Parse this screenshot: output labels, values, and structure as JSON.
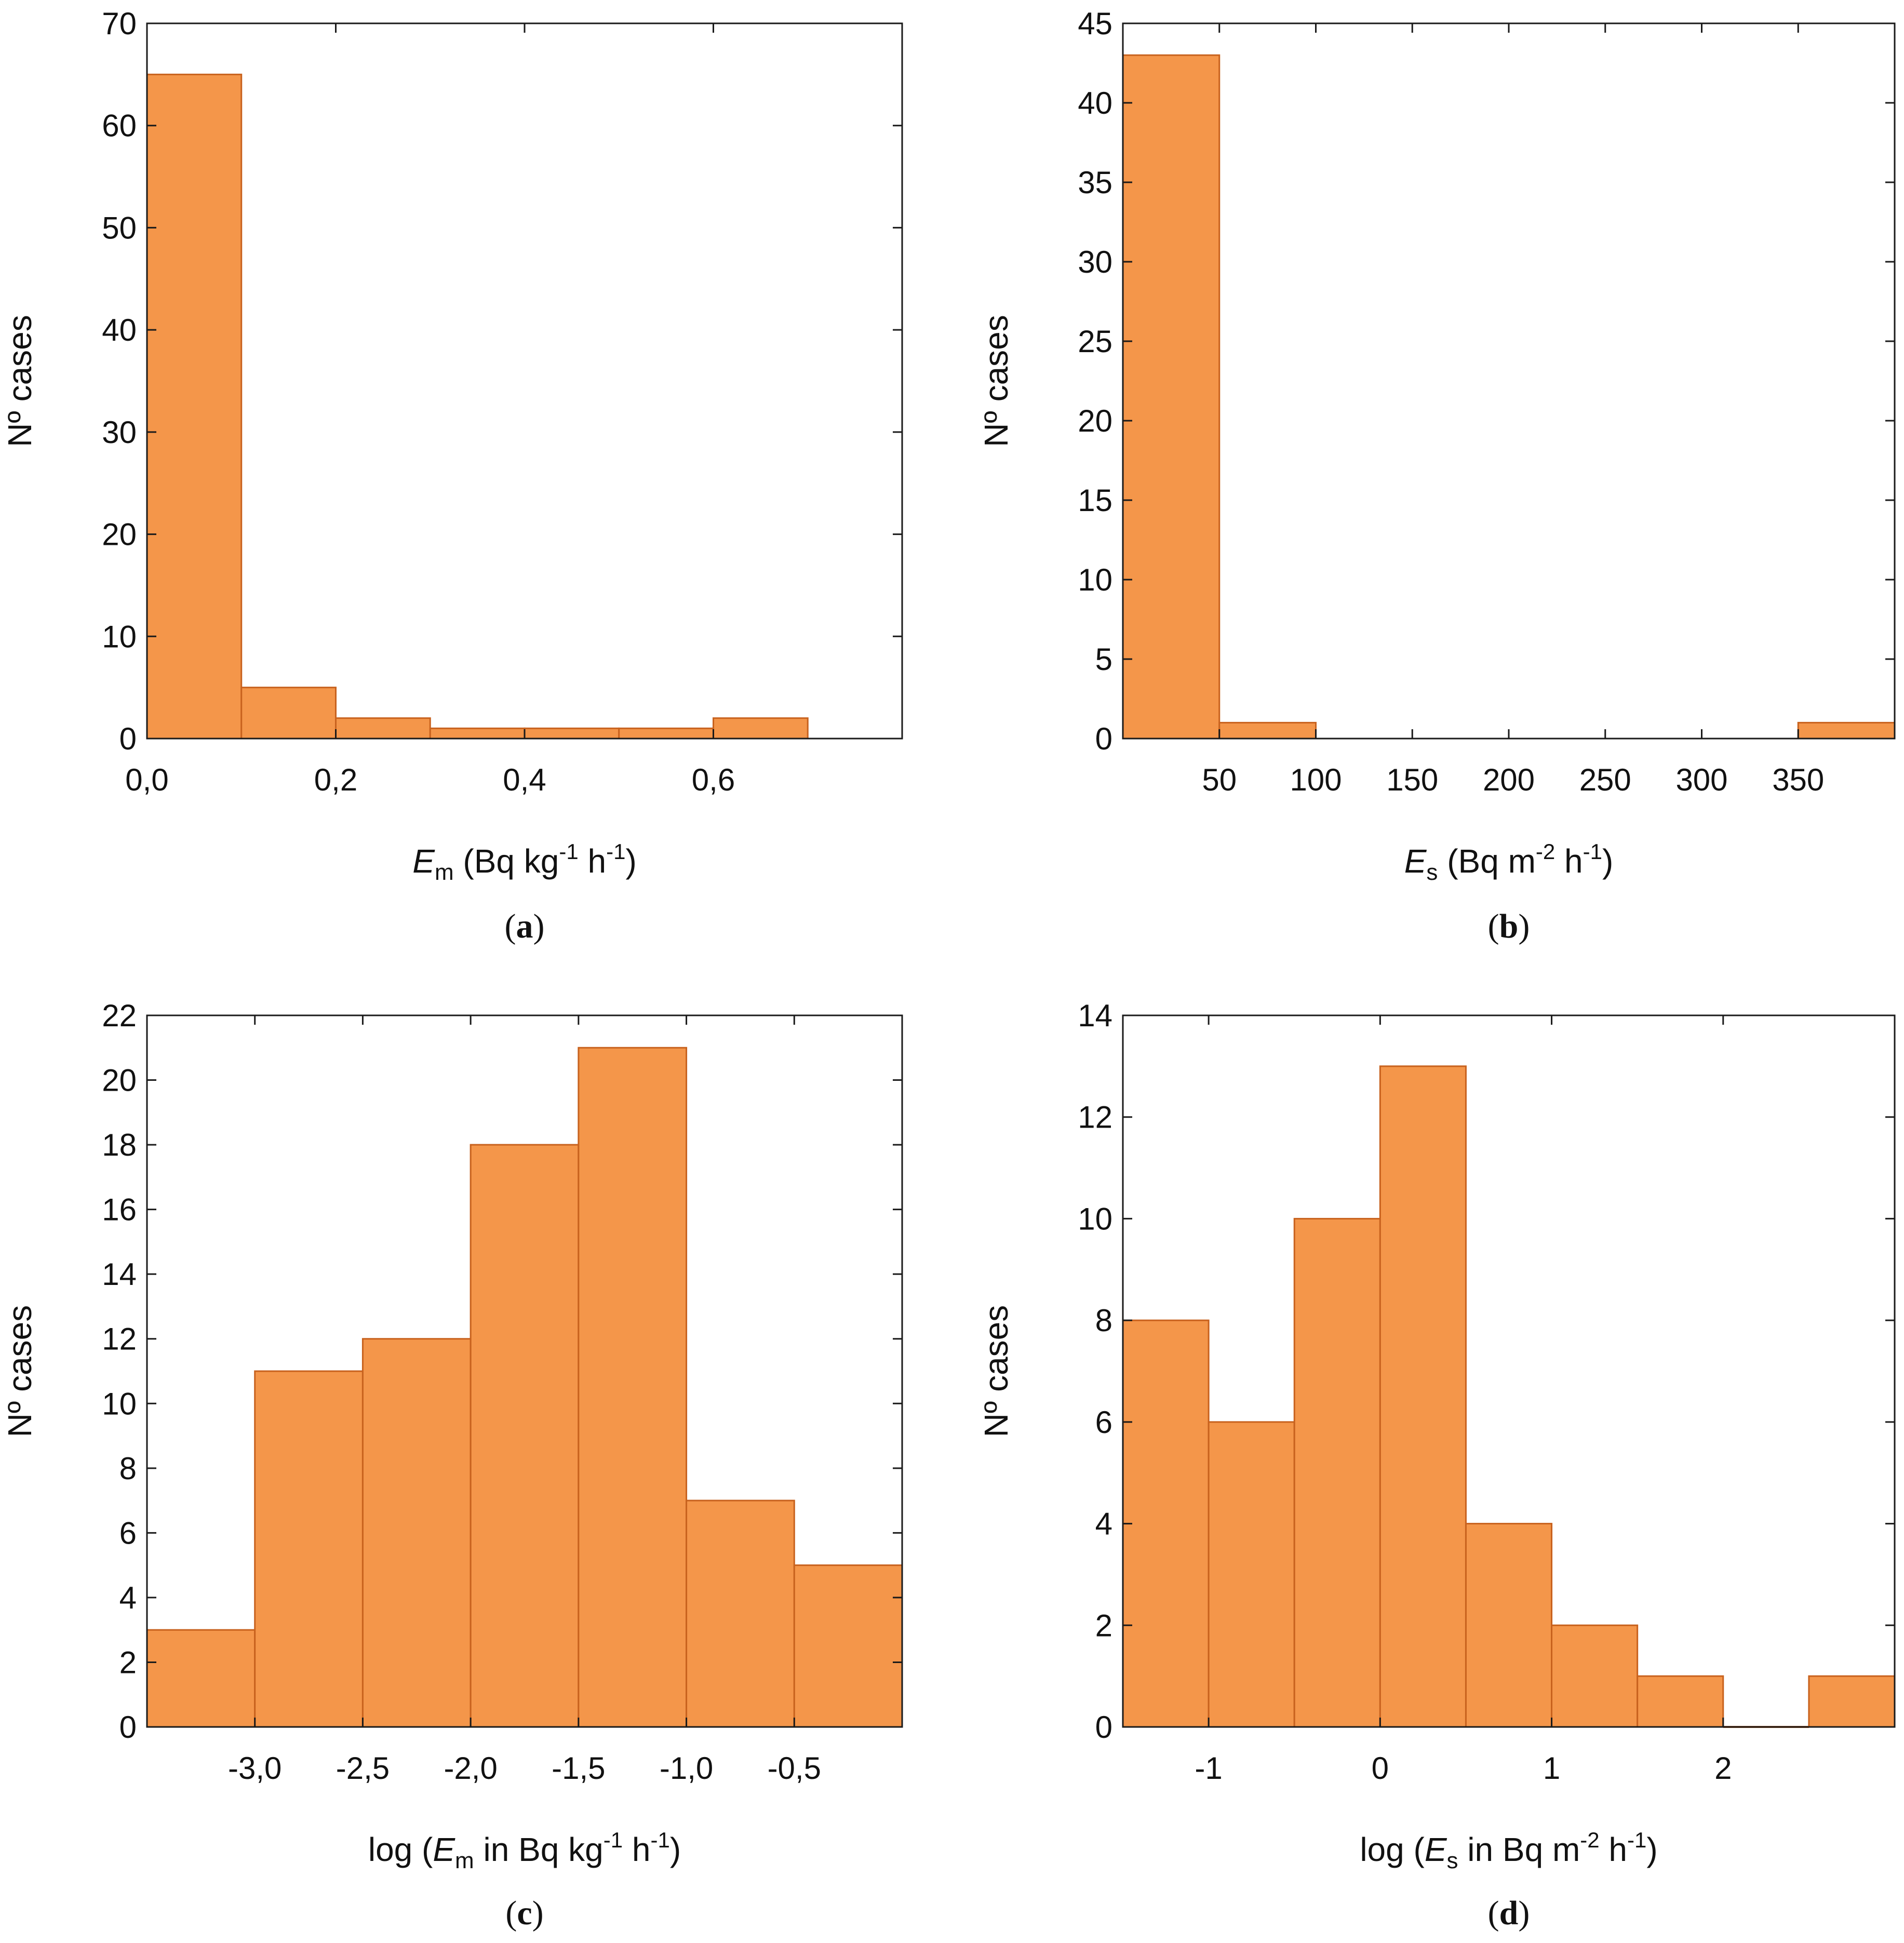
{
  "colors": {
    "bar_fill": "#F4964A",
    "bar_stroke": "#C8621E",
    "axis": "#1a1a1a"
  },
  "chart_data": [
    {
      "id": "a",
      "type": "bar",
      "caption": "a",
      "ylabel": "Nº cases",
      "xlabel": {
        "sym": "E",
        "sub": "m",
        "unit_pre": " (Bq kg",
        "sup1": "-1",
        "mid": " h",
        "sup2": "-1",
        "end": ")"
      },
      "xlim": [
        0,
        0.8
      ],
      "ylim": [
        0,
        70
      ],
      "x_ticks": [
        0,
        0.2,
        0.4,
        0.6
      ],
      "x_tick_labels": [
        "0,0",
        "0,2",
        "0,4",
        "0,6"
      ],
      "y_ticks": [
        0,
        10,
        20,
        30,
        40,
        50,
        60,
        70
      ],
      "y_tick_labels": [
        "0",
        "10",
        "20",
        "30",
        "40",
        "50",
        "60",
        "70"
      ],
      "bins": [
        {
          "from": 0.0,
          "to": 0.1,
          "count": 65
        },
        {
          "from": 0.1,
          "to": 0.2,
          "count": 5
        },
        {
          "from": 0.2,
          "to": 0.3,
          "count": 2
        },
        {
          "from": 0.3,
          "to": 0.4,
          "count": 1
        },
        {
          "from": 0.4,
          "to": 0.5,
          "count": 1
        },
        {
          "from": 0.5,
          "to": 0.6,
          "count": 1
        },
        {
          "from": 0.6,
          "to": 0.7,
          "count": 2
        }
      ]
    },
    {
      "id": "b",
      "type": "bar",
      "caption": "b",
      "ylabel": "Nº cases",
      "xlabel": {
        "sym": "E",
        "sub": "s",
        "unit_pre": " (Bq m",
        "sup1": "-2",
        "mid": " h",
        "sup2": "-1",
        "end": ")"
      },
      "xlim": [
        0,
        400
      ],
      "ylim": [
        0,
        45
      ],
      "x_ticks": [
        50,
        100,
        150,
        200,
        250,
        300,
        350
      ],
      "x_tick_labels": [
        "50",
        "100",
        "150",
        "200",
        "250",
        "300",
        "350"
      ],
      "y_ticks": [
        0,
        5,
        10,
        15,
        20,
        25,
        30,
        35,
        40,
        45
      ],
      "y_tick_labels": [
        "0",
        "5",
        "10",
        "15",
        "20",
        "25",
        "30",
        "35",
        "40",
        "45"
      ],
      "bins": [
        {
          "from": 0,
          "to": 50,
          "count": 43
        },
        {
          "from": 50,
          "to": 100,
          "count": 1
        },
        {
          "from": 350,
          "to": 400,
          "count": 1
        }
      ]
    },
    {
      "id": "c",
      "type": "bar",
      "caption": "c",
      "ylabel": "Nº cases",
      "xlabel": {
        "pre": "log (",
        "sym": "E",
        "sub": "m",
        "unit_pre": " in Bq kg",
        "sup1": "-1",
        "mid": " h",
        "sup2": "-1",
        "end": ")"
      },
      "xlim": [
        -3.5,
        0
      ],
      "ylim": [
        0,
        22
      ],
      "x_ticks": [
        -3.0,
        -2.5,
        -2.0,
        -1.5,
        -1.0,
        -0.5
      ],
      "x_tick_labels": [
        "-3,0",
        "-2,5",
        "-2,0",
        "-1,5",
        "-1,0",
        "-0,5"
      ],
      "y_ticks": [
        0,
        2,
        4,
        6,
        8,
        10,
        12,
        14,
        16,
        18,
        20,
        22
      ],
      "y_tick_labels": [
        "0",
        "2",
        "4",
        "6",
        "8",
        "10",
        "12",
        "14",
        "16",
        "18",
        "20",
        "22"
      ],
      "bins": [
        {
          "from": -3.5,
          "to": -3.0,
          "count": 3
        },
        {
          "from": -3.0,
          "to": -2.5,
          "count": 11
        },
        {
          "from": -2.5,
          "to": -2.0,
          "count": 12
        },
        {
          "from": -2.0,
          "to": -1.5,
          "count": 18
        },
        {
          "from": -1.5,
          "to": -1.0,
          "count": 21
        },
        {
          "from": -1.0,
          "to": -0.5,
          "count": 7
        },
        {
          "from": -0.5,
          "to": 0.0,
          "count": 5
        }
      ]
    },
    {
      "id": "d",
      "type": "bar",
      "caption": "d",
      "ylabel": "Nº cases",
      "xlabel": {
        "pre": "log (",
        "sym": "E",
        "sub": "s",
        "unit_pre": " in Bq m",
        "sup1": "-2",
        "mid": " h",
        "sup2": "-1",
        "end": ")"
      },
      "xlim": [
        -1.5,
        3.0
      ],
      "ylim": [
        0,
        14
      ],
      "x_ticks": [
        -1,
        0,
        1,
        2
      ],
      "x_tick_labels": [
        "-1",
        "0",
        "1",
        "2"
      ],
      "y_ticks": [
        0,
        2,
        4,
        6,
        8,
        10,
        12,
        14
      ],
      "y_tick_labels": [
        "0",
        "2",
        "4",
        "6",
        "8",
        "10",
        "12",
        "14"
      ],
      "bins": [
        {
          "from": -1.5,
          "to": -1.0,
          "count": 8
        },
        {
          "from": -1.0,
          "to": -0.5,
          "count": 6
        },
        {
          "from": -0.5,
          "to": 0.0,
          "count": 10
        },
        {
          "from": 0.0,
          "to": 0.5,
          "count": 13
        },
        {
          "from": 0.5,
          "to": 1.0,
          "count": 4
        },
        {
          "from": 1.0,
          "to": 1.5,
          "count": 2
        },
        {
          "from": 1.5,
          "to": 2.0,
          "count": 1
        },
        {
          "from": 2.0,
          "to": 2.5,
          "count": 0
        },
        {
          "from": 2.5,
          "to": 3.0,
          "count": 1
        }
      ]
    }
  ]
}
